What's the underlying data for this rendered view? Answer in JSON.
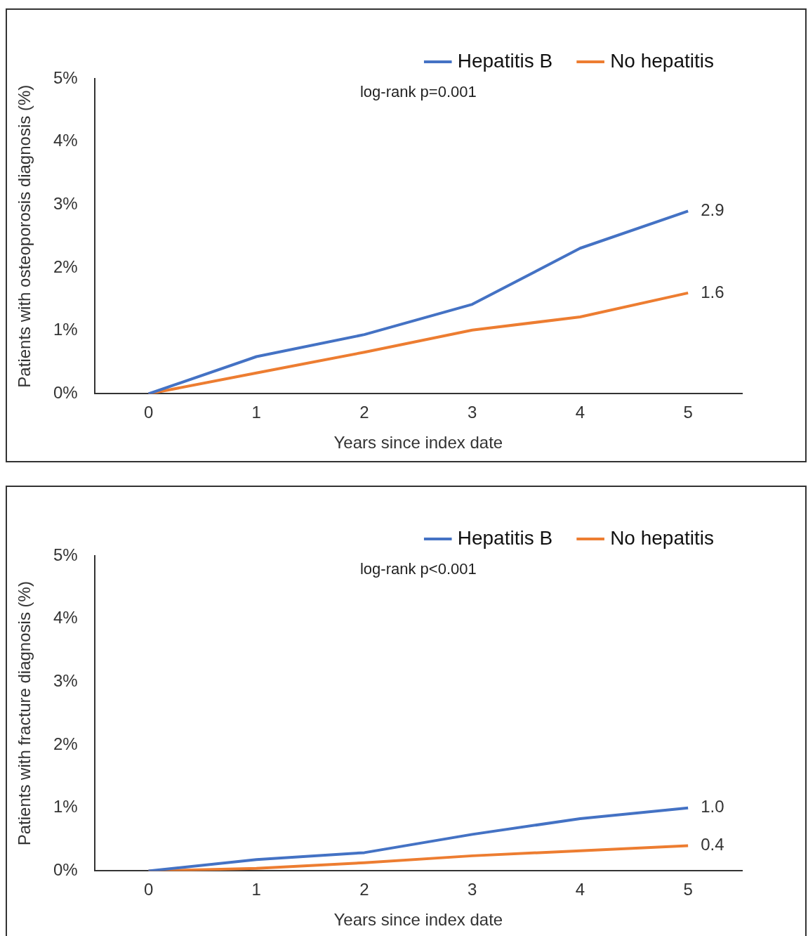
{
  "chart_data": [
    {
      "type": "line",
      "xlabel": "Years since index date",
      "ylabel": "Patients with osteoporosis diagnosis (%)",
      "categories": [
        "0",
        "1",
        "2",
        "3",
        "4",
        "5"
      ],
      "series": [
        {
          "name": "Hepatitis B",
          "color": "#4472c4",
          "values": [
            0,
            0.59,
            0.94,
            1.42,
            2.31,
            2.9
          ],
          "value_labels": [
            null,
            null,
            null,
            null,
            null,
            "2.9"
          ]
        },
        {
          "name": "No hepatitis",
          "color": "#ed7d31",
          "values": [
            0,
            0.33,
            0.66,
            1.01,
            1.22,
            1.6
          ],
          "value_labels": [
            null,
            null,
            null,
            null,
            null,
            "1.6"
          ]
        }
      ],
      "ylim": [
        0,
        5
      ],
      "yticks": [
        {
          "value": 0,
          "label": "0%"
        },
        {
          "value": 1,
          "label": "1%"
        },
        {
          "value": 2,
          "label": "2%"
        },
        {
          "value": 3,
          "label": "3%"
        },
        {
          "value": 4,
          "label": "4%"
        },
        {
          "value": 5,
          "label": "5%"
        }
      ],
      "grid": false,
      "legend": "top",
      "annotations": [
        "log-rank p=0.001"
      ]
    },
    {
      "type": "line",
      "xlabel": "Years since index date",
      "ylabel": "Patients with fracture diagnosis (%)",
      "categories": [
        "0",
        "1",
        "2",
        "3",
        "4",
        "5"
      ],
      "series": [
        {
          "name": "Hepatitis B",
          "color": "#4472c4",
          "values": [
            0,
            0.18,
            0.29,
            0.58,
            0.83,
            1.0
          ],
          "value_labels": [
            null,
            null,
            null,
            null,
            null,
            "1.0"
          ]
        },
        {
          "name": "No hepatitis",
          "color": "#ed7d31",
          "values": [
            0,
            0.04,
            0.13,
            0.24,
            0.32,
            0.4
          ],
          "value_labels": [
            null,
            null,
            null,
            null,
            null,
            "0.4"
          ]
        }
      ],
      "ylim": [
        0,
        5
      ],
      "yticks": [
        {
          "value": 0,
          "label": "0%"
        },
        {
          "value": 1,
          "label": "1%"
        },
        {
          "value": 2,
          "label": "2%"
        },
        {
          "value": 3,
          "label": "3%"
        },
        {
          "value": 4,
          "label": "4%"
        },
        {
          "value": 5,
          "label": "5%"
        }
      ],
      "grid": false,
      "legend": "top",
      "annotations": [
        "log-rank p<0.001"
      ]
    }
  ]
}
